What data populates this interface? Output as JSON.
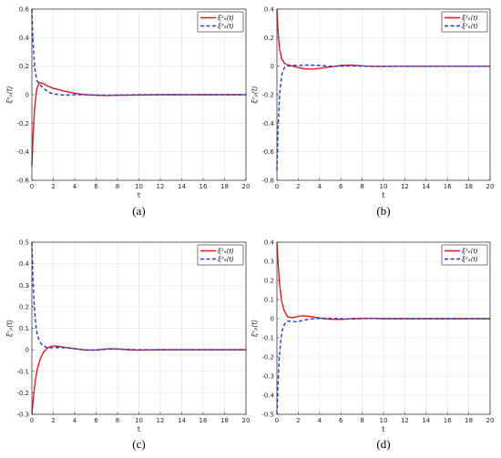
{
  "chart_data": [
    {
      "type": "line",
      "caption": "(a)",
      "xlabel": "t",
      "ylabel": "ξⁿₚ(t)",
      "xlim": [
        0,
        20
      ],
      "ylim": [
        -0.6,
        0.6
      ],
      "xticks": [
        "0",
        "2",
        "4",
        "6",
        "8",
        "10",
        "12",
        "14",
        "16",
        "18",
        "20"
      ],
      "yticks": [
        "-0.6",
        "-0.4",
        "-0.2",
        "0",
        "0.2",
        "0.4",
        "0.6"
      ],
      "grid": true,
      "legend_position": "top-right",
      "series": [
        {
          "name": "ξ¹ₑ(t)",
          "color": "#e41a1c",
          "style": "solid",
          "x": [
            0,
            0.1,
            0.25,
            0.45,
            0.7,
            1.0,
            1.5,
            2.0,
            3.0,
            4.0,
            5.0,
            6.0,
            7.0,
            8.0,
            10.0,
            12.0,
            14.0,
            16.0,
            18.0,
            20.0
          ],
          "y": [
            -0.5,
            -0.3,
            -0.1,
            0.04,
            0.085,
            0.08,
            0.06,
            0.045,
            0.025,
            0.01,
            0.0,
            -0.004,
            -0.006,
            -0.004,
            -0.002,
            0.0,
            0.0,
            0.0,
            0.0,
            0.0
          ]
        },
        {
          "name": "ξ²ₑ(t)",
          "color": "#1f3fd8",
          "style": "dashed",
          "x": [
            0,
            0.1,
            0.25,
            0.45,
            0.7,
            1.0,
            1.5,
            2.0,
            3.0,
            4.0,
            5.0,
            6.0,
            7.0,
            8.0,
            10.0,
            12.0,
            14.0,
            16.0,
            18.0,
            20.0
          ],
          "y": [
            0.6,
            0.38,
            0.2,
            0.1,
            0.075,
            0.05,
            0.02,
            0.005,
            -0.003,
            0.0,
            0.0,
            -0.002,
            -0.003,
            -0.002,
            0.0,
            0.0,
            0.0,
            0.0,
            0.0,
            0.0
          ]
        }
      ]
    },
    {
      "type": "line",
      "caption": "(b)",
      "xlabel": "t",
      "ylabel": "ξⁿₚ(t)",
      "xlim": [
        0,
        20
      ],
      "ylim": [
        -0.8,
        0.4
      ],
      "xticks": [
        "0",
        "2",
        "4",
        "6",
        "8",
        "10",
        "12",
        "14",
        "16",
        "18",
        "20"
      ],
      "yticks": [
        "-0.8",
        "-0.6",
        "-0.4",
        "-0.2",
        "0",
        "0.2",
        "0.4"
      ],
      "grid": true,
      "legend_position": "top-right",
      "series": [
        {
          "name": "ξ¹ₑ(t)",
          "color": "#e41a1c",
          "style": "solid",
          "x": [
            0,
            0.1,
            0.25,
            0.45,
            0.7,
            1.0,
            1.5,
            2.0,
            2.5,
            3.0,
            3.5,
            4.0,
            5.0,
            6.0,
            7.0,
            8.0,
            9.0,
            10.0,
            12.0,
            14.0,
            16.0,
            18.0,
            20.0
          ],
          "y": [
            0.4,
            0.25,
            0.12,
            0.05,
            0.02,
            0.01,
            0.0,
            -0.01,
            -0.018,
            -0.02,
            -0.02,
            -0.015,
            -0.005,
            0.005,
            0.007,
            0.002,
            -0.002,
            -0.002,
            0.0,
            0.0,
            0.0,
            0.0,
            0.0
          ]
        },
        {
          "name": "ξ²ₑ(t)",
          "color": "#1f3fd8",
          "style": "dashed",
          "x": [
            0,
            0.1,
            0.25,
            0.45,
            0.7,
            1.0,
            1.5,
            2.0,
            3.0,
            4.0,
            5.0,
            6.0,
            7.0,
            8.0,
            10.0,
            12.0,
            14.0,
            16.0,
            18.0,
            20.0
          ],
          "y": [
            -0.73,
            -0.45,
            -0.2,
            -0.06,
            -0.01,
            0.0,
            0.005,
            0.005,
            0.008,
            0.005,
            0.0,
            0.0,
            0.003,
            0.0,
            0.0,
            0.0,
            0.0,
            0.0,
            0.0,
            0.0
          ]
        }
      ]
    },
    {
      "type": "line",
      "caption": "(c)",
      "xlabel": "t",
      "ylabel": "ξⁿₚ(t)",
      "xlim": [
        0,
        20
      ],
      "ylim": [
        -0.3,
        0.5
      ],
      "xticks": [
        "0",
        "2",
        "4",
        "6",
        "8",
        "10",
        "12",
        "14",
        "16",
        "18",
        "20"
      ],
      "yticks": [
        "-0.3",
        "-0.2",
        "-0.1",
        "0",
        "0.1",
        "0.2",
        "0.3",
        "0.4",
        "0.5"
      ],
      "grid": true,
      "legend_position": "top-right",
      "series": [
        {
          "name": "ξ¹ₑ(t)",
          "color": "#e41a1c",
          "style": "solid",
          "x": [
            0,
            0.15,
            0.3,
            0.5,
            0.8,
            1.1,
            1.5,
            2.0,
            2.5,
            3.0,
            4.0,
            5.0,
            6.0,
            7.0,
            7.5,
            8.0,
            9.0,
            10.0,
            12.0,
            14.0,
            16.0,
            18.0,
            20.0
          ],
          "y": [
            -0.3,
            -0.22,
            -0.15,
            -0.09,
            -0.04,
            -0.01,
            0.01,
            0.018,
            0.015,
            0.012,
            0.005,
            -0.002,
            -0.001,
            0.004,
            0.005,
            0.004,
            0.0,
            -0.002,
            0.0,
            0.0,
            0.0,
            0.0,
            0.0
          ]
        },
        {
          "name": "ξ²ₑ(t)",
          "color": "#1f3fd8",
          "style": "dashed",
          "x": [
            0,
            0.1,
            0.2,
            0.35,
            0.5,
            0.7,
            1.0,
            1.5,
            2.0,
            3.0,
            4.0,
            5.0,
            6.0,
            7.0,
            8.0,
            10.0,
            12.0,
            14.0,
            16.0,
            18.0,
            20.0
          ],
          "y": [
            0.5,
            0.33,
            0.22,
            0.12,
            0.07,
            0.04,
            0.02,
            0.008,
            0.01,
            0.01,
            0.005,
            0.0,
            -0.002,
            0.003,
            0.003,
            0.0,
            0.0,
            0.0,
            0.0,
            0.0,
            0.0
          ]
        }
      ]
    },
    {
      "type": "line",
      "caption": "(d)",
      "xlabel": "t",
      "ylabel": "ξⁿₚ(t)",
      "xlim": [
        0,
        20
      ],
      "ylim": [
        -0.5,
        0.4
      ],
      "xticks": [
        "0",
        "2",
        "4",
        "6",
        "8",
        "10",
        "12",
        "14",
        "16",
        "18",
        "20"
      ],
      "yticks": [
        "-0.5",
        "-0.4",
        "-0.3",
        "-0.2",
        "-0.1",
        "0",
        "0.1",
        "0.2",
        "0.3",
        "0.4"
      ],
      "grid": true,
      "legend_position": "top-right",
      "series": [
        {
          "name": "ξ¹ₑ(t)",
          "color": "#e41a1c",
          "style": "solid",
          "x": [
            0,
            0.1,
            0.25,
            0.45,
            0.7,
            1.0,
            1.5,
            2.0,
            2.5,
            3.0,
            4.0,
            5.0,
            6.0,
            7.0,
            8.0,
            9.0,
            10.0,
            12.0,
            14.0,
            16.0,
            18.0,
            20.0
          ],
          "y": [
            0.4,
            0.3,
            0.18,
            0.09,
            0.04,
            0.01,
            0.005,
            0.012,
            0.015,
            0.012,
            0.003,
            -0.003,
            -0.004,
            0.0,
            0.002,
            0.002,
            0.0,
            0.0,
            0.0,
            0.0,
            0.0,
            0.0
          ]
        },
        {
          "name": "ξ²ₑ(t)",
          "color": "#1f3fd8",
          "style": "dashed",
          "x": [
            0,
            0.1,
            0.2,
            0.35,
            0.5,
            0.7,
            1.0,
            1.5,
            2.0,
            2.5,
            3.0,
            4.0,
            5.0,
            6.0,
            7.0,
            8.0,
            9.0,
            10.0,
            12.0,
            14.0,
            16.0,
            18.0,
            20.0
          ],
          "y": [
            -0.5,
            -0.35,
            -0.22,
            -0.12,
            -0.06,
            -0.03,
            -0.012,
            -0.015,
            -0.015,
            -0.008,
            -0.003,
            0.002,
            0.002,
            0.0,
            -0.002,
            0.0,
            0.001,
            0.0,
            0.0,
            0.0,
            0.0,
            0.0,
            0.0
          ]
        }
      ]
    }
  ]
}
